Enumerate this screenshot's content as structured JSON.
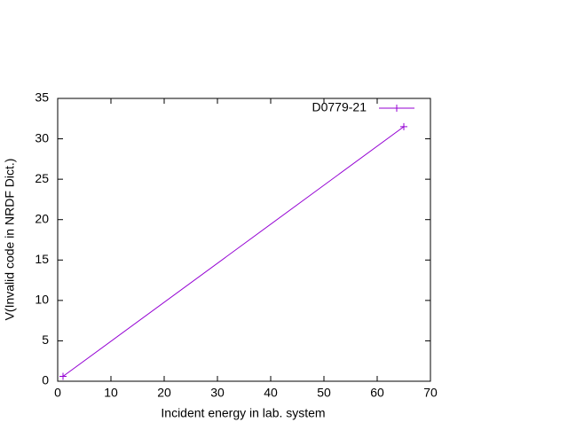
{
  "chart_data": {
    "type": "line",
    "xlabel": "Incident energy in lab. system",
    "ylabel": "V(Invalid code in NRDF Dict.)",
    "xlim": [
      0,
      70
    ],
    "xticks": [
      0,
      10,
      20,
      30,
      40,
      50,
      60,
      70
    ],
    "ylim": [
      0,
      35
    ],
    "yticks": [
      0,
      5,
      10,
      15,
      20,
      25,
      30,
      35
    ],
    "legend": "top-right",
    "series": [
      {
        "name": "D0779-21",
        "color": "#9400d3",
        "x": [
          1,
          65
        ],
        "values": [
          0.6,
          31.5
        ]
      }
    ]
  }
}
